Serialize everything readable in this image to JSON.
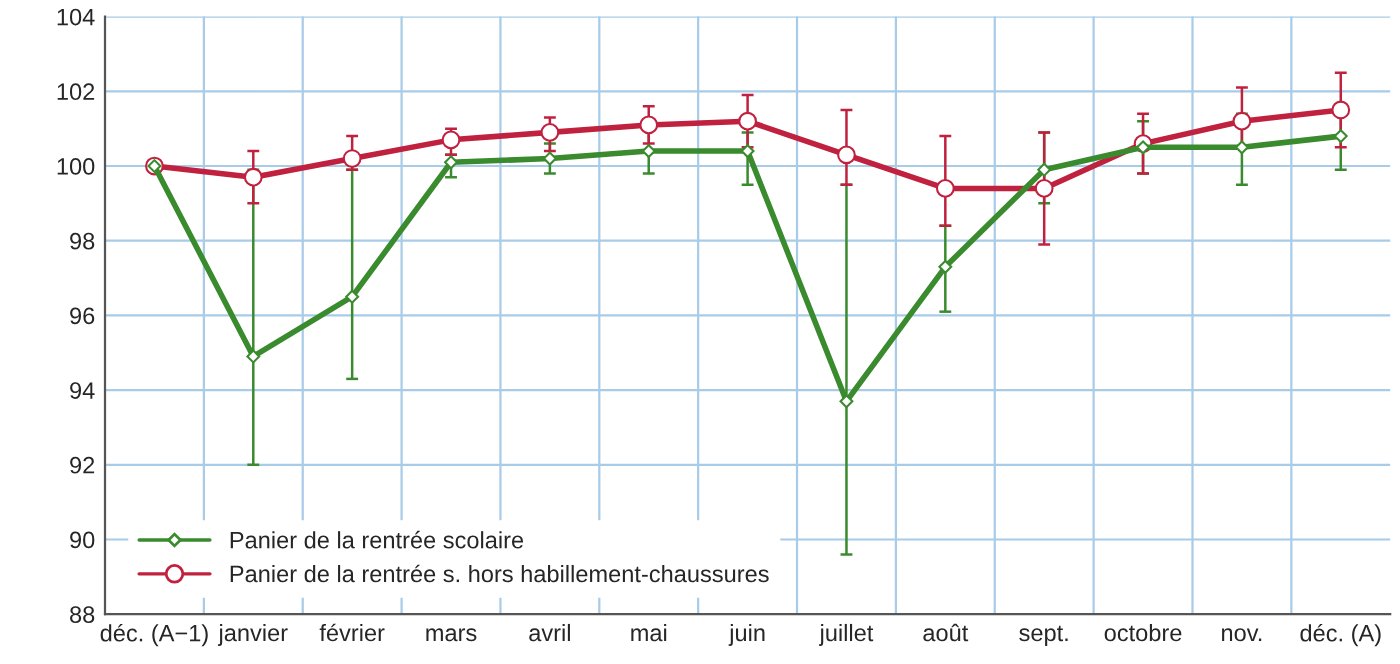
{
  "chart_data": {
    "type": "line",
    "categories": [
      "déc. (A−1)",
      "janvier",
      "février",
      "mars",
      "avril",
      "mai",
      "juin",
      "juillet",
      "août",
      "sept.",
      "octobre",
      "nov.",
      "déc. (A)"
    ],
    "ylim": [
      88,
      104
    ],
    "yticks": [
      88,
      90,
      92,
      94,
      96,
      98,
      100,
      102,
      104
    ],
    "grid": true,
    "legend": "bottom left",
    "series": [
      {
        "name": "Panier de la rentrée scolaire",
        "color": "#3a8a2e",
        "marker": "diamond",
        "values": [
          100,
          94.9,
          96.5,
          100.1,
          100.2,
          100.4,
          100.4,
          93.7,
          97.3,
          99.9,
          100.5,
          100.5,
          100.8
        ],
        "errors": [
          null,
          [
            92.0,
            99.9
          ],
          [
            94.3,
            99.9
          ],
          [
            99.7,
            100.3
          ],
          [
            99.8,
            100.6
          ],
          [
            99.8,
            101.0
          ],
          [
            99.5,
            100.9
          ],
          [
            89.6,
            99.5
          ],
          [
            96.1,
            98.4
          ],
          [
            99.0,
            100.9
          ],
          [
            99.8,
            101.2
          ],
          [
            99.5,
            101.4
          ],
          [
            99.9,
            101.5
          ]
        ]
      },
      {
        "name": "Panier de la rentrée s. hors habillement-chaussures",
        "color": "#c0213f",
        "marker": "circle",
        "values": [
          100,
          99.7,
          100.2,
          100.7,
          100.9,
          101.1,
          101.2,
          100.3,
          99.4,
          99.4,
          100.6,
          101.2,
          101.5
        ],
        "errors": [
          null,
          [
            99.0,
            100.4
          ],
          [
            99.9,
            100.8
          ],
          [
            100.3,
            101.0
          ],
          [
            100.4,
            101.3
          ],
          [
            100.6,
            101.6
          ],
          [
            100.5,
            101.9
          ],
          [
            99.5,
            101.5
          ],
          [
            98.4,
            100.8
          ],
          [
            97.9,
            100.9
          ],
          [
            99.8,
            101.4
          ],
          [
            100.5,
            102.1
          ],
          [
            100.5,
            102.5
          ]
        ]
      }
    ]
  }
}
